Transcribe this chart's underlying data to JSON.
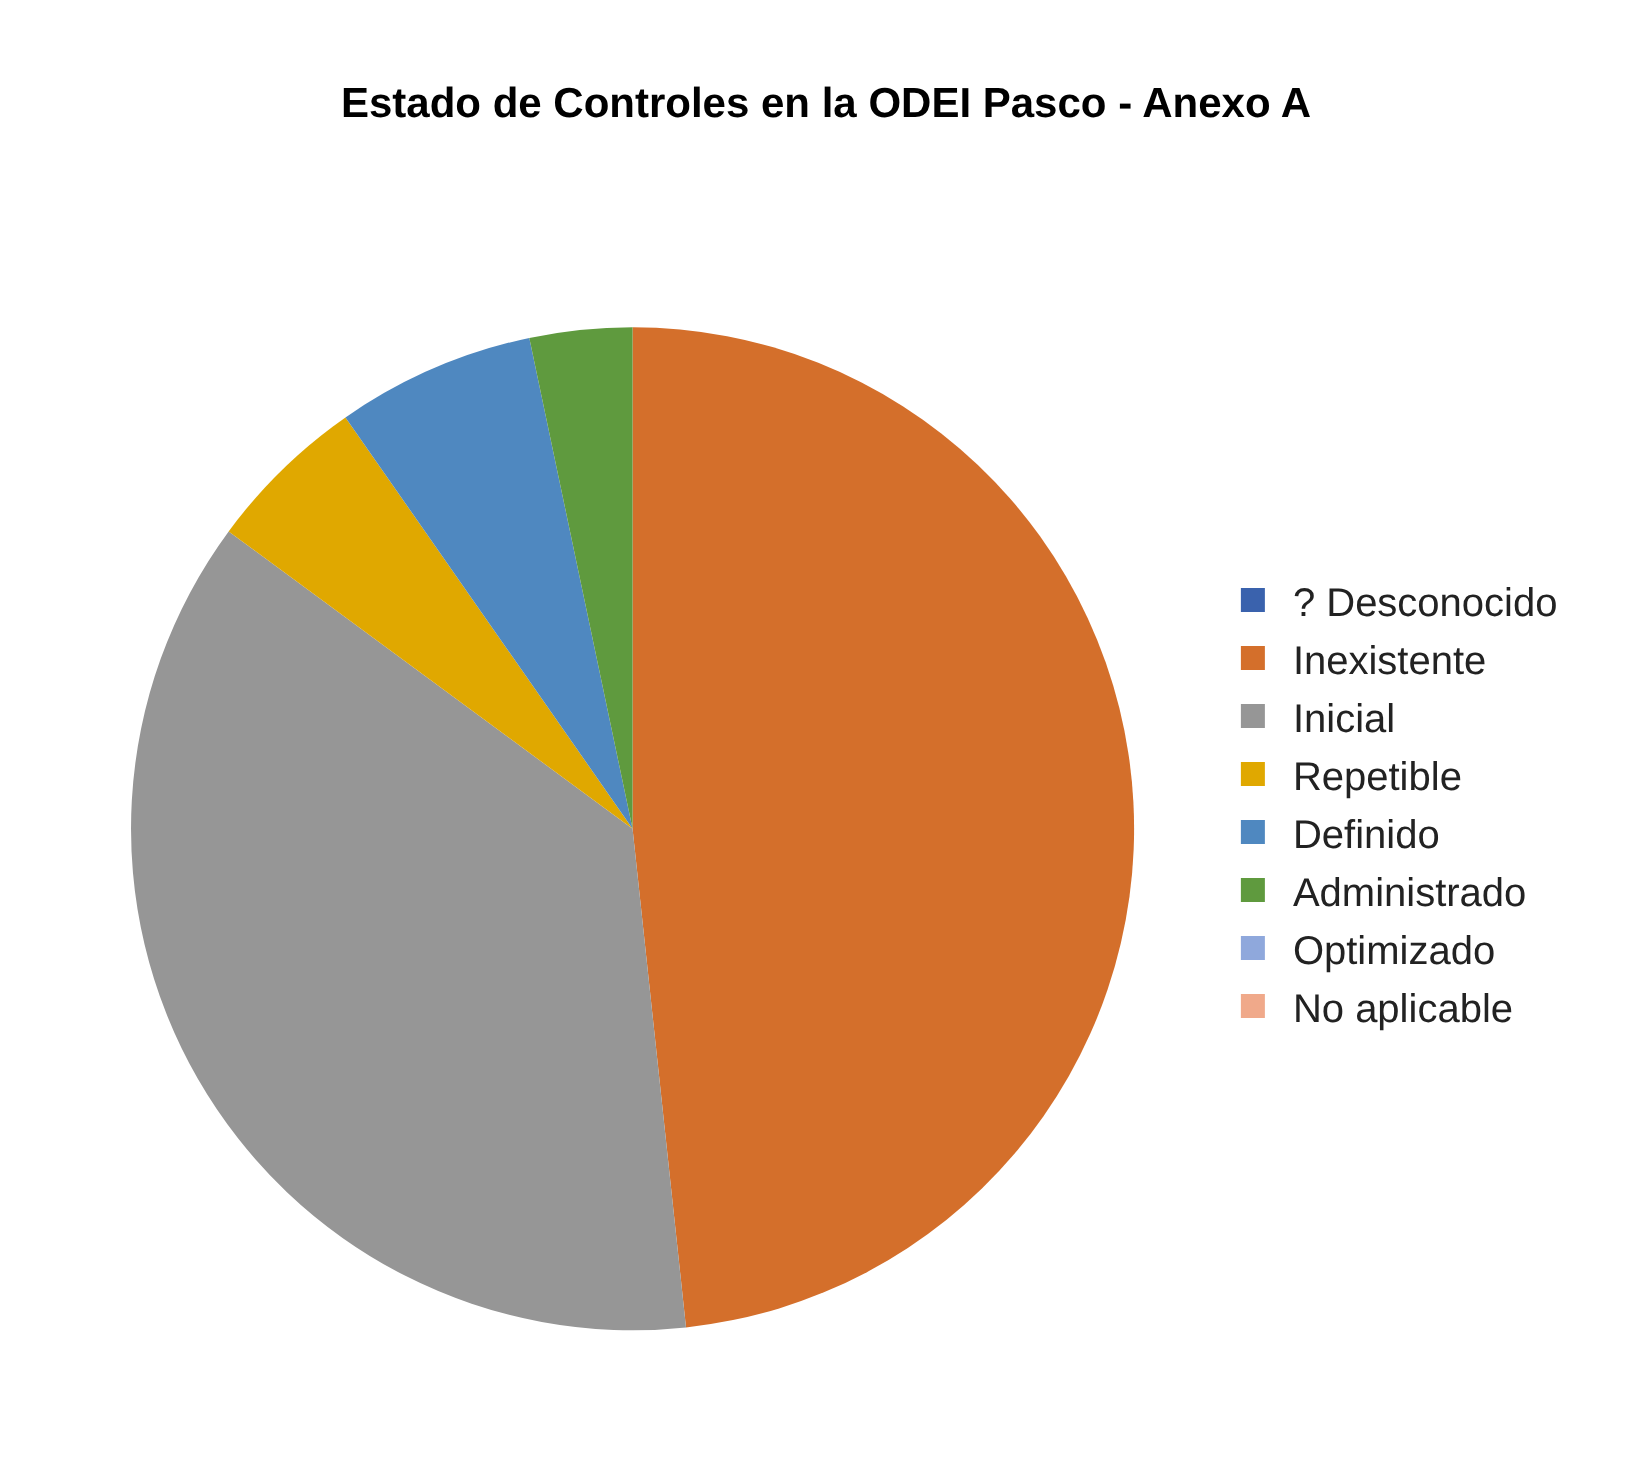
{
  "chart_data": {
    "type": "pie",
    "title": "Estado de Controles en la ODEI Pasco - Anexo A",
    "categories": [
      "? Desconocido",
      "Inexistente",
      "Inicial",
      "Repetible",
      "Definido",
      "Administrado",
      "Optimizado",
      "No aplicable"
    ],
    "values": [
      0,
      48.3,
      36.8,
      5.2,
      6.4,
      3.3,
      0,
      0
    ],
    "colors": [
      "#3a62ad",
      "#d46f2b",
      "#969696",
      "#e0a800",
      "#4f88c0",
      "#5f9a3e",
      "#8fa8dc",
      "#f0a98a"
    ],
    "legend": "right"
  }
}
